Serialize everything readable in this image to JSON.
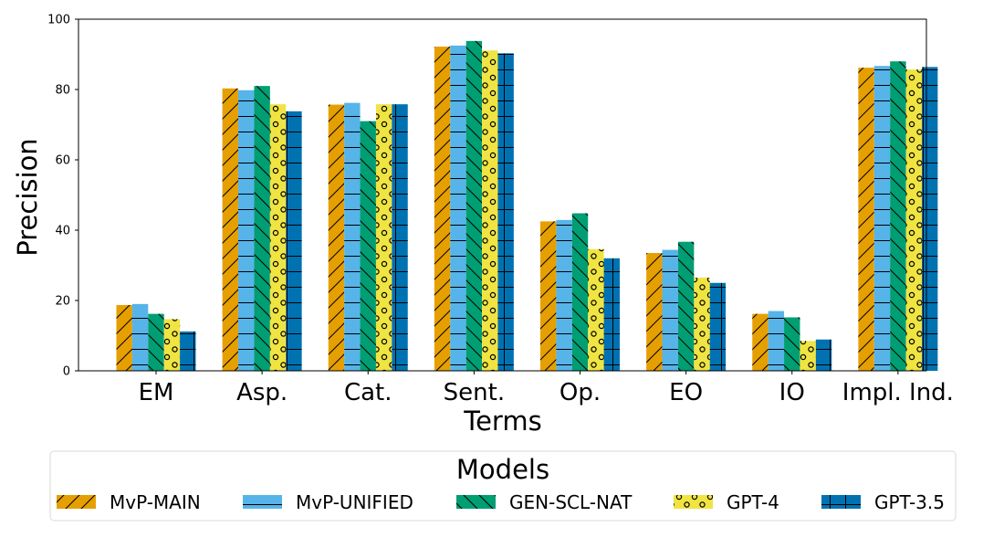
{
  "chart_data": {
    "type": "bar",
    "categories": [
      "EM",
      "Asp.",
      "Cat.",
      "Sent.",
      "Op.",
      "EO",
      "IO",
      "Impl. Ind."
    ],
    "series": [
      {
        "name": "MvP-MAIN",
        "color": "#E69F00",
        "pattern": "diagonal-forward",
        "values": [
          18.7,
          80.3,
          75.7,
          92.2,
          42.5,
          33.5,
          16.2,
          86.2
        ]
      },
      {
        "name": "MvP-UNIFIED",
        "color": "#56B4E9",
        "pattern": "horizontal-lines",
        "values": [
          19.0,
          79.8,
          76.2,
          92.5,
          42.9,
          34.4,
          17.0,
          86.7
        ]
      },
      {
        "name": "GEN-SCL-NAT",
        "color": "#009E73",
        "pattern": "diagonal-backward",
        "values": [
          16.2,
          81.0,
          71.0,
          93.8,
          44.8,
          36.7,
          15.2,
          88.0
        ]
      },
      {
        "name": "GPT-4",
        "color": "#F0E442",
        "pattern": "circles",
        "values": [
          14.7,
          75.8,
          75.8,
          91.1,
          34.6,
          26.5,
          8.5,
          85.7
        ]
      },
      {
        "name": "GPT-3.5",
        "color": "#0072B2",
        "pattern": "grid-lines",
        "values": [
          11.2,
          73.8,
          75.8,
          90.3,
          32.0,
          25.0,
          8.9,
          86.4
        ]
      }
    ],
    "xlabel": "Terms",
    "ylabel": "Precision",
    "ylim": [
      0,
      100
    ],
    "yticks": [
      "0",
      "20",
      "40",
      "60",
      "80",
      "100"
    ],
    "grid": false,
    "legend": {
      "title": "Models",
      "placement": "bottom-center"
    }
  }
}
